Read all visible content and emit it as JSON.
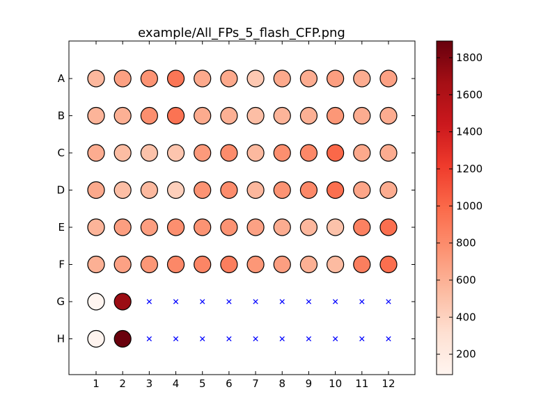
{
  "chart_data": {
    "type": "heatmap",
    "title": "example/All_FPs_5_flash_CFP.png",
    "xlabel": "",
    "ylabel": "",
    "columns": [
      "1",
      "2",
      "3",
      "4",
      "5",
      "6",
      "7",
      "8",
      "9",
      "10",
      "11",
      "12"
    ],
    "rows": [
      "A",
      "B",
      "C",
      "D",
      "E",
      "F",
      "G",
      "H"
    ],
    "values": [
      [
        560,
        690,
        760,
        920,
        640,
        640,
        460,
        640,
        620,
        700,
        620,
        680
      ],
      [
        580,
        600,
        780,
        940,
        630,
        600,
        520,
        580,
        600,
        740,
        620,
        620
      ],
      [
        620,
        530,
        500,
        480,
        720,
        800,
        550,
        780,
        820,
        1000,
        640,
        620
      ],
      [
        640,
        520,
        550,
        420,
        760,
        800,
        560,
        760,
        820,
        960,
        660,
        620
      ],
      [
        580,
        700,
        700,
        780,
        760,
        760,
        680,
        620,
        560,
        500,
        860,
        960
      ],
      [
        600,
        680,
        740,
        820,
        840,
        880,
        740,
        700,
        600,
        540,
        880,
        960
      ],
      [
        90,
        1700,
        null,
        null,
        null,
        null,
        null,
        null,
        null,
        null,
        null,
        null
      ],
      [
        100,
        1880,
        null,
        null,
        null,
        null,
        null,
        null,
        null,
        null,
        null,
        null
      ]
    ],
    "missing_marker": "x",
    "missing_color": "#0000ff",
    "colormap": "Reds",
    "colorbar": {
      "min": 90,
      "max": 1890,
      "ticks": [
        200,
        400,
        600,
        800,
        1000,
        1200,
        1400,
        1600,
        1800
      ],
      "tick_labels": [
        "200",
        "400",
        "600",
        "800",
        "1000",
        "1200",
        "1400",
        "1600",
        "1800"
      ]
    },
    "grid": false,
    "legend": "none"
  }
}
